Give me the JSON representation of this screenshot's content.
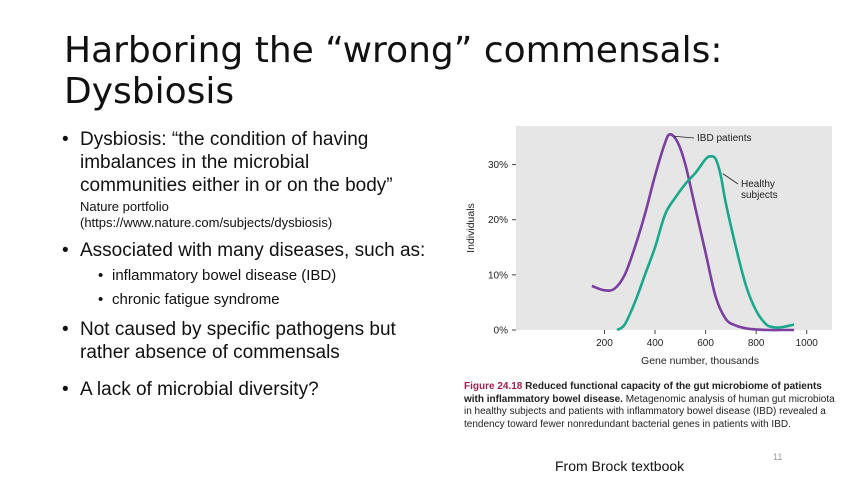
{
  "title_lines": [
    "Harboring the “wrong” commensals:",
    "Dysbiosis"
  ],
  "bullets": {
    "b1_lines": [
      "Dysbiosis: “the condition of having",
      "imbalances in the microbial",
      "communities either in or on the body”"
    ],
    "b1_source": [
      "Nature portfolio",
      "(https://www.nature.com/subjects/dysbiosis)"
    ],
    "b2": "Associated with many diseases, such as:",
    "b2_sub": [
      "inflammatory bowel disease (IBD)",
      "chronic fatigue syndrome"
    ],
    "b3_lines": [
      "Not caused by specific pathogens but",
      "rather absence of commensals"
    ],
    "b4": "A lack of microbial diversity?"
  },
  "chart_data": {
    "type": "line",
    "xlabel": "Gene number, thousands",
    "ylabel": "Individuals",
    "xlim": [
      -150,
      1100
    ],
    "ylim": [
      0,
      37
    ],
    "xticks": [
      200,
      400,
      600,
      800,
      1000
    ],
    "yticks": [
      0,
      10,
      20,
      30
    ],
    "ytick_labels": [
      "0%",
      "10%",
      "20%",
      "30%"
    ],
    "grid": false,
    "background": "#e6e6e6",
    "series": [
      {
        "name": "IBD patients",
        "color": "#7b3fa0",
        "x": [
          150,
          200,
          240,
          280,
          320,
          360,
          400,
          440,
          460,
          490,
          520,
          560,
          600,
          640,
          680,
          720,
          760,
          800,
          850,
          900,
          950
        ],
        "y": [
          8,
          7.2,
          7.5,
          10,
          15,
          21,
          28,
          34,
          35.5,
          34,
          30,
          22,
          14,
          6,
          2,
          0.8,
          0.3,
          0.1,
          0,
          0,
          0
        ]
      },
      {
        "name": "Healthy subjects",
        "color": "#1aa88c",
        "x": [
          250,
          280,
          320,
          360,
          400,
          440,
          480,
          520,
          560,
          600,
          620,
          640,
          660,
          680,
          720,
          760,
          800,
          840,
          870,
          900,
          950
        ],
        "y": [
          0,
          1,
          5,
          10,
          15,
          21,
          24,
          26.5,
          28.5,
          31,
          31.5,
          31,
          28,
          23,
          15,
          8,
          3.5,
          1,
          0.5,
          0.5,
          1
        ]
      }
    ],
    "legend_labels": [
      "IBD patients",
      "Healthy\nsubjects"
    ]
  },
  "caption": {
    "fig_label": "Figure 24.18",
    "bold_text": "Reduced functional capacity of the gut microbiome of patients with inflammatory bowel disease.",
    "body_text": "Metagenomic analysis of human gut microbiota in healthy subjects and patients with inflammatory bowel disease (IBD) revealed a tendency toward fewer nonredundant bacterial genes in patients with IBD."
  },
  "footer": "From Brock textbook",
  "page_number": "11"
}
